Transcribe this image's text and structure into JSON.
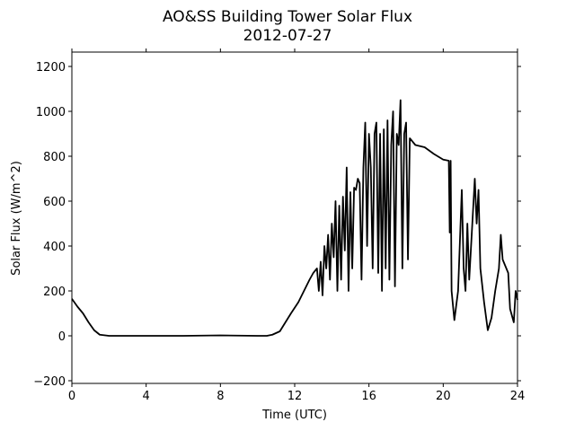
{
  "chart_data": {
    "type": "line",
    "title": "AO&SS Building Tower Solar Flux",
    "subtitle": "2012-07-27",
    "x_label": "Time (UTC)",
    "y_label": "Solar Flux (W/m^2)",
    "xlim": [
      0,
      24
    ],
    "ylim": [
      -212,
      1264
    ],
    "xticks": [
      0,
      4,
      8,
      12,
      16,
      20,
      24
    ],
    "yticks": [
      {
        "value": -200,
        "label": "−200"
      },
      0,
      200,
      400,
      600,
      800,
      1000,
      1200
    ],
    "x": [
      0,
      0.3,
      0.6,
      0.9,
      1.2,
      1.5,
      2,
      4,
      6,
      8,
      10,
      10.5,
      10.8,
      11.2,
      11.5,
      11.8,
      12.2,
      12.5,
      12.8,
      13,
      13.2,
      13.3,
      13.4,
      13.5,
      13.6,
      13.7,
      13.8,
      13.9,
      14,
      14.1,
      14.2,
      14.3,
      14.4,
      14.5,
      14.6,
      14.7,
      14.8,
      14.9,
      15,
      15.1,
      15.2,
      15.3,
      15.4,
      15.5,
      15.6,
      15.7,
      15.8,
      15.9,
      16,
      16.1,
      16.2,
      16.3,
      16.4,
      16.5,
      16.6,
      16.7,
      16.8,
      16.9,
      17,
      17.1,
      17.2,
      17.3,
      17.4,
      17.5,
      17.6,
      17.7,
      17.8,
      17.9,
      18,
      18.1,
      18.2,
      18.5,
      19,
      19.5,
      20,
      20.3,
      20.35,
      20.4,
      20.45,
      20.6,
      20.8,
      21,
      21.1,
      21.2,
      21.3,
      21.4,
      21.6,
      21.7,
      21.8,
      21.9,
      22,
      22.2,
      22.4,
      22.6,
      22.8,
      23,
      23.1,
      23.2,
      23.5,
      23.6,
      23.7,
      23.8,
      23.9,
      24
    ],
    "series": [
      {
        "name": "Solar Flux",
        "color": "#000000",
        "values": [
          165,
          130,
          100,
          60,
          25,
          5,
          0,
          0,
          0,
          2,
          0,
          0,
          5,
          20,
          60,
          100,
          150,
          200,
          250,
          280,
          300,
          200,
          330,
          180,
          400,
          300,
          450,
          250,
          500,
          350,
          600,
          200,
          580,
          250,
          620,
          380,
          750,
          200,
          640,
          300,
          660,
          650,
          700,
          680,
          250,
          750,
          950,
          400,
          900,
          750,
          300,
          900,
          950,
          280,
          900,
          200,
          920,
          300,
          960,
          250,
          850,
          1000,
          220,
          900,
          850,
          1050,
          300,
          900,
          950,
          340,
          880,
          850,
          840,
          810,
          785,
          780,
          460,
          780,
          200,
          70,
          200,
          650,
          300,
          200,
          500,
          250,
          550,
          700,
          500,
          650,
          300,
          150,
          25,
          80,
          200,
          300,
          450,
          340,
          280,
          120,
          90,
          60,
          200,
          160
        ]
      }
    ]
  }
}
